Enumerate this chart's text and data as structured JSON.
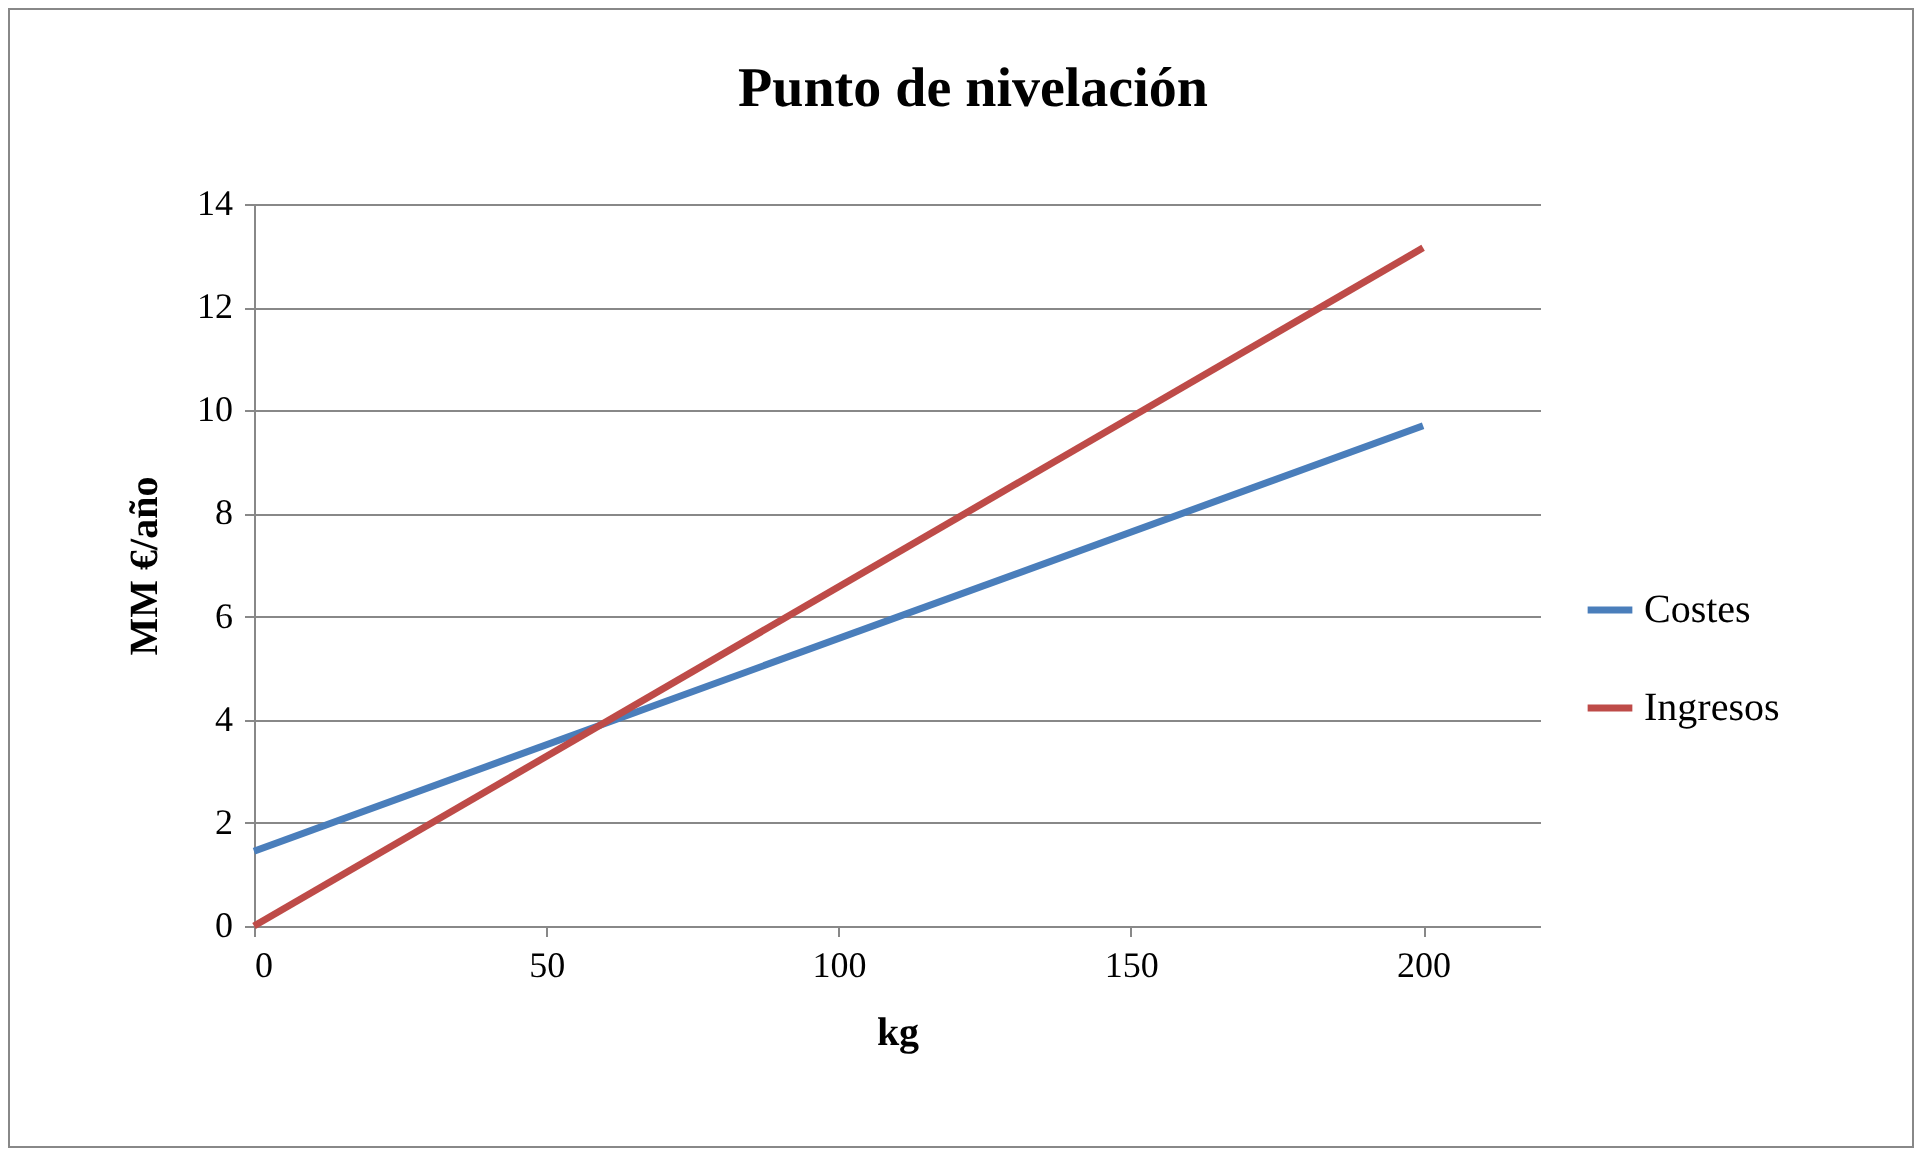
{
  "chart_data": {
    "type": "line",
    "title": "Punto de nivelación",
    "xlabel": "kg",
    "ylabel": "MM €/año",
    "x": [
      0,
      200
    ],
    "series": [
      {
        "name": "Costes",
        "color": "#4a7ebb",
        "values": [
          1.45,
          9.7
        ]
      },
      {
        "name": "Ingresos",
        "color": "#be4b48",
        "values": [
          0,
          13.15
        ]
      }
    ],
    "xlim": [
      0,
      220
    ],
    "xticks": [
      0,
      50,
      100,
      150,
      200
    ],
    "ylim": [
      0,
      14
    ],
    "yticks": [
      0,
      2,
      4,
      6,
      8,
      10,
      12,
      14
    ],
    "grid": "y",
    "legend": "right",
    "marker": "none",
    "line_style": "solid"
  }
}
